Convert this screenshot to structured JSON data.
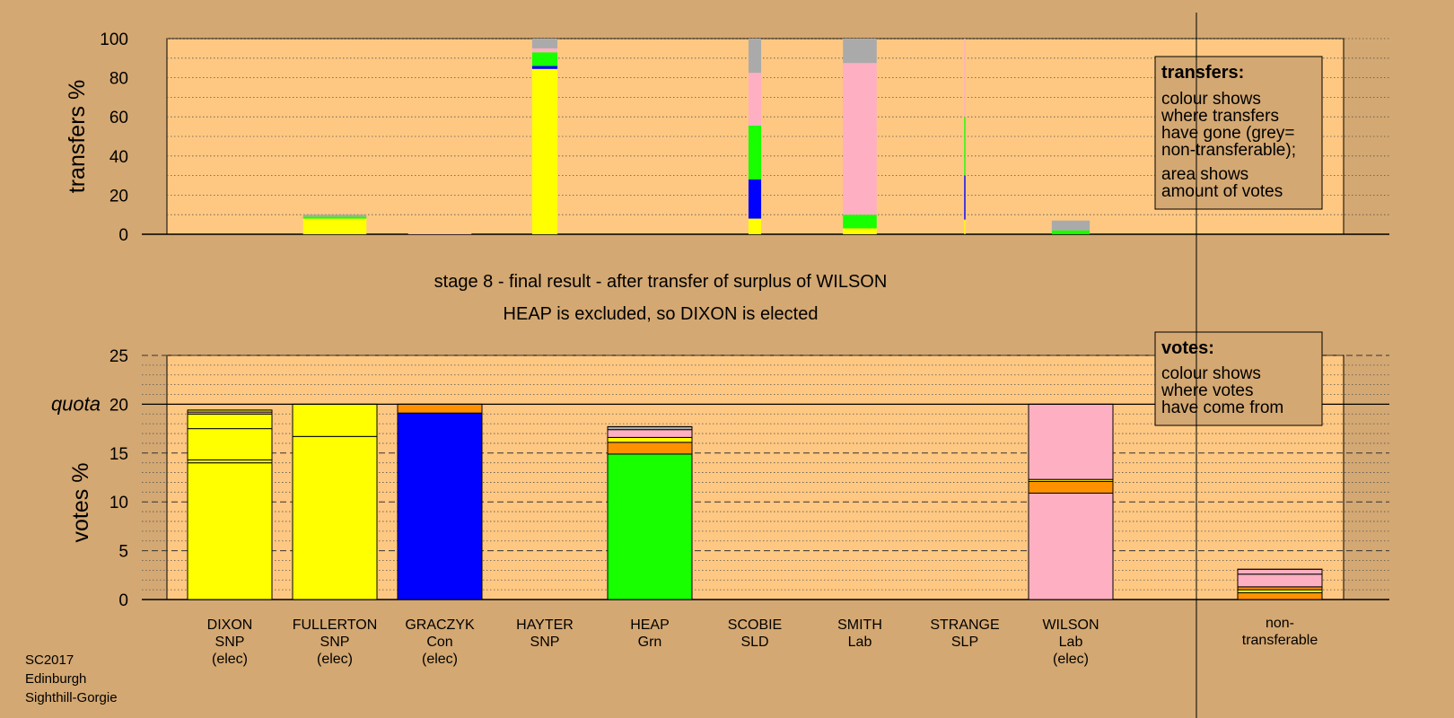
{
  "chart_data": {
    "type": "bar",
    "categories": [
      {
        "name": "DIXON",
        "party": "SNP",
        "status": "(elec)"
      },
      {
        "name": "FULLERTON",
        "party": "SNP",
        "status": "(elec)"
      },
      {
        "name": "GRACZYK",
        "party": "Con",
        "status": "(elec)"
      },
      {
        "name": "HAYTER",
        "party": "SNP",
        "status": ""
      },
      {
        "name": "HEAP",
        "party": "Grn",
        "status": ""
      },
      {
        "name": "SCOBIE",
        "party": "SLD",
        "status": ""
      },
      {
        "name": "SMITH",
        "party": "Lab",
        "status": ""
      },
      {
        "name": "STRANGE",
        "party": "SLP",
        "status": ""
      },
      {
        "name": "WILSON",
        "party": "Lab",
        "status": "(elec)"
      }
    ],
    "nontransferable_label": [
      "non-",
      "transferable"
    ],
    "colors": {
      "background": "#d4a872",
      "plot": "#ffc882",
      "snp": "#ffff00",
      "con": "#0000ff",
      "grn": "#18ff00",
      "lab": "#ffafc2",
      "orange": "#ff9100",
      "grey": "#aaaaaa"
    },
    "stage_title": "stage 8 - final result - after transfer of surplus of WILSON",
    "stage_subtitle": "HEAP is excluded, so DIXON is elected",
    "transfers": {
      "ylabel": "transfers %",
      "ylim": [
        0,
        100
      ],
      "yticks": [
        "0",
        "20",
        "40",
        "60",
        "80",
        "100"
      ],
      "bars": [
        {
          "index": 1,
          "width_frac": 0.75,
          "segments": [
            {
              "color": "#ffff00",
              "value": 8
            },
            {
              "color": "#18ff00",
              "value": 1
            },
            {
              "color": "#aaaaaa",
              "value": 1
            }
          ]
        },
        {
          "index": 2,
          "width_frac": 0.75,
          "segments": [
            {
              "color": "#ffafc2",
              "value": 0.5
            }
          ]
        },
        {
          "index": 3,
          "width_frac": 0.3,
          "segments": [
            {
              "color": "#ffff00",
              "value": 84.5
            },
            {
              "color": "#0000ff",
              "value": 1.5
            },
            {
              "color": "#18ff00",
              "value": 7
            },
            {
              "color": "#ffafc2",
              "value": 2
            },
            {
              "color": "#aaaaaa",
              "value": 5
            }
          ]
        },
        {
          "index": 5,
          "width_frac": 0.15,
          "segments": [
            {
              "color": "#ffff00",
              "value": 8
            },
            {
              "color": "#0000ff",
              "value": 20
            },
            {
              "color": "#18ff00",
              "value": 27.5
            },
            {
              "color": "#ffafc2",
              "value": 27
            },
            {
              "color": "#aaaaaa",
              "value": 17.5
            }
          ]
        },
        {
          "index": 6,
          "width_frac": 0.4,
          "segments": [
            {
              "color": "#ffff00",
              "value": 3
            },
            {
              "color": "#18ff00",
              "value": 7
            },
            {
              "color": "#ffafc2",
              "value": 77.5
            },
            {
              "color": "#aaaaaa",
              "value": 12.5
            }
          ]
        },
        {
          "index": 7,
          "width_frac": 0.015,
          "segments": [
            {
              "color": "#ffff00",
              "value": 7.5
            },
            {
              "color": "#0000ff",
              "value": 22.5
            },
            {
              "color": "#18ff00",
              "value": 30
            },
            {
              "color": "#ffafc2",
              "value": 40
            }
          ]
        },
        {
          "index": 8,
          "width_frac": 0.45,
          "segments": [
            {
              "color": "#18ff00",
              "value": 2
            },
            {
              "color": "#aaaaaa",
              "value": 5
            }
          ]
        }
      ],
      "legend": {
        "title": "transfers:",
        "lines": [
          "colour shows",
          "where transfers",
          "have gone (grey=",
          "non-transferable);"
        ],
        "lines2": [
          "area shows",
          "amount of votes"
        ]
      }
    },
    "votes": {
      "ylabel": "votes %",
      "quota_label": "quota",
      "quota": 20,
      "ylim": [
        0,
        25
      ],
      "yticks": [
        "0",
        "5",
        "10",
        "15",
        "20",
        "25"
      ],
      "bars": [
        {
          "index": 0,
          "segments": [
            {
              "color": "#ffff00",
              "value": 14
            },
            {
              "color": "#ffff00",
              "value": 0.3
            },
            {
              "color": "#ffff00",
              "value": 3.2
            },
            {
              "color": "#ffff00",
              "value": 1.5
            },
            {
              "color": "#ffafc2",
              "value": 0.2
            },
            {
              "color": "#ffff00",
              "value": 0.2
            }
          ]
        },
        {
          "index": 1,
          "segments": [
            {
              "color": "#ffff00",
              "value": 16.7
            },
            {
              "color": "#ffff00",
              "value": 3.3
            }
          ]
        },
        {
          "index": 2,
          "segments": [
            {
              "color": "#0000ff",
              "value": 19.1
            },
            {
              "color": "#ff9100",
              "value": 0.9
            }
          ]
        },
        {
          "index": 4,
          "segments": [
            {
              "color": "#18ff00",
              "value": 14.9
            },
            {
              "color": "#ff9100",
              "value": 1.2
            },
            {
              "color": "#ffff00",
              "value": 0.5
            },
            {
              "color": "#ffafc2",
              "value": 0.8
            },
            {
              "color": "#aaaaaa",
              "value": 0.3
            }
          ]
        },
        {
          "index": 8,
          "segments": [
            {
              "color": "#ffafc2",
              "value": 10.9
            },
            {
              "color": "#ff9100",
              "value": 1.2
            },
            {
              "color": "#ffff00",
              "value": 0.2
            },
            {
              "color": "#ffafc2",
              "value": 7.7
            }
          ]
        },
        {
          "index": 9,
          "segments": [
            {
              "color": "#ff9100",
              "value": 0.7
            },
            {
              "color": "#ffff00",
              "value": 0.3
            },
            {
              "color": "#ff9100",
              "value": 0.3
            },
            {
              "color": "#ffafc2",
              "value": 1.3
            },
            {
              "color": "#ffafc2",
              "value": 0.5
            }
          ]
        }
      ],
      "legend": {
        "title": "votes:",
        "lines": [
          "colour shows",
          "where votes",
          "have come from"
        ]
      }
    }
  },
  "footer": {
    "election": "SC2017",
    "council": "Edinburgh",
    "ward": "Sighthill-Gorgie"
  }
}
